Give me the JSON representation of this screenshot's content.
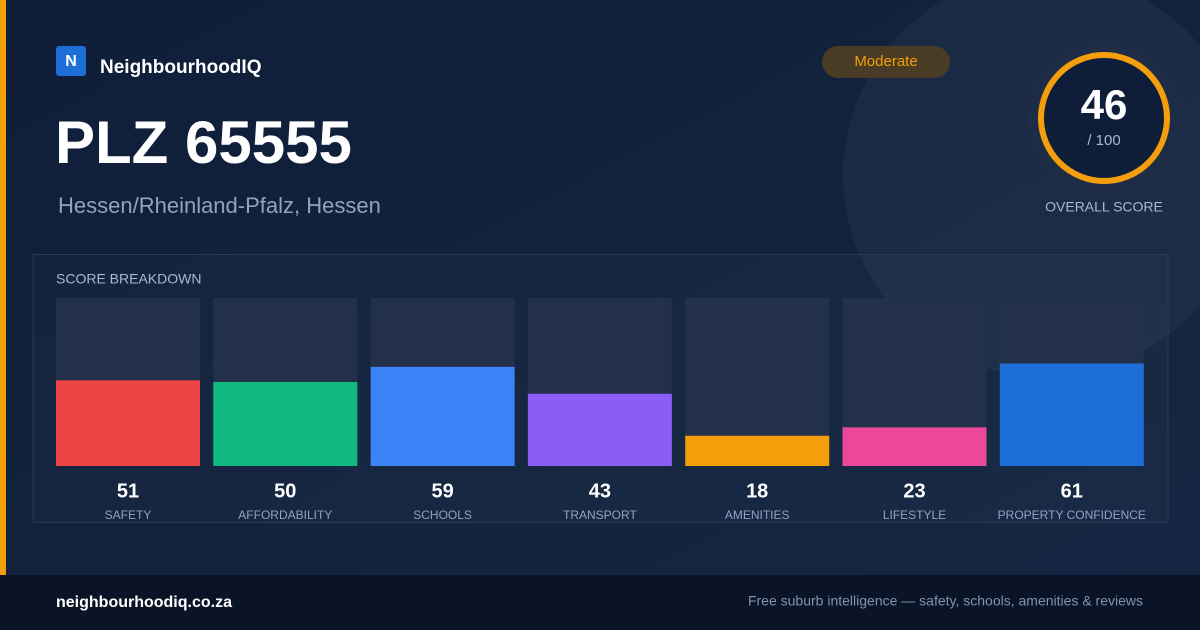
{
  "brand": {
    "logo_letter": "N",
    "name": "NeighbourhoodIQ"
  },
  "title": "PLZ 65555",
  "subtitle": "Hessen/Rheinland-Pfalz, Hessen",
  "badge": "Moderate",
  "score": {
    "value": 46,
    "suffix": "/ 100",
    "label": "OVERALL SCORE"
  },
  "chart_data": {
    "type": "bar",
    "title": "SCORE BREAKDOWN",
    "categories": [
      "SAFETY",
      "AFFORDABILITY",
      "SCHOOLS",
      "TRANSPORT",
      "AMENITIES",
      "LIFESTYLE",
      "PROPERTY CONFIDENCE"
    ],
    "values": [
      51,
      50,
      59,
      43,
      18,
      23,
      61
    ],
    "colors": [
      "#ef4444",
      "#10b981",
      "#3b82f6",
      "#8b5cf6",
      "#f59e0b",
      "#ec4899",
      "#1d6fd8"
    ],
    "ylim": [
      0,
      100
    ]
  },
  "footer": {
    "site": "neighbourhoodiq.co.za",
    "tagline": "Free suburb intelligence — safety, schools, amenities & reviews"
  }
}
